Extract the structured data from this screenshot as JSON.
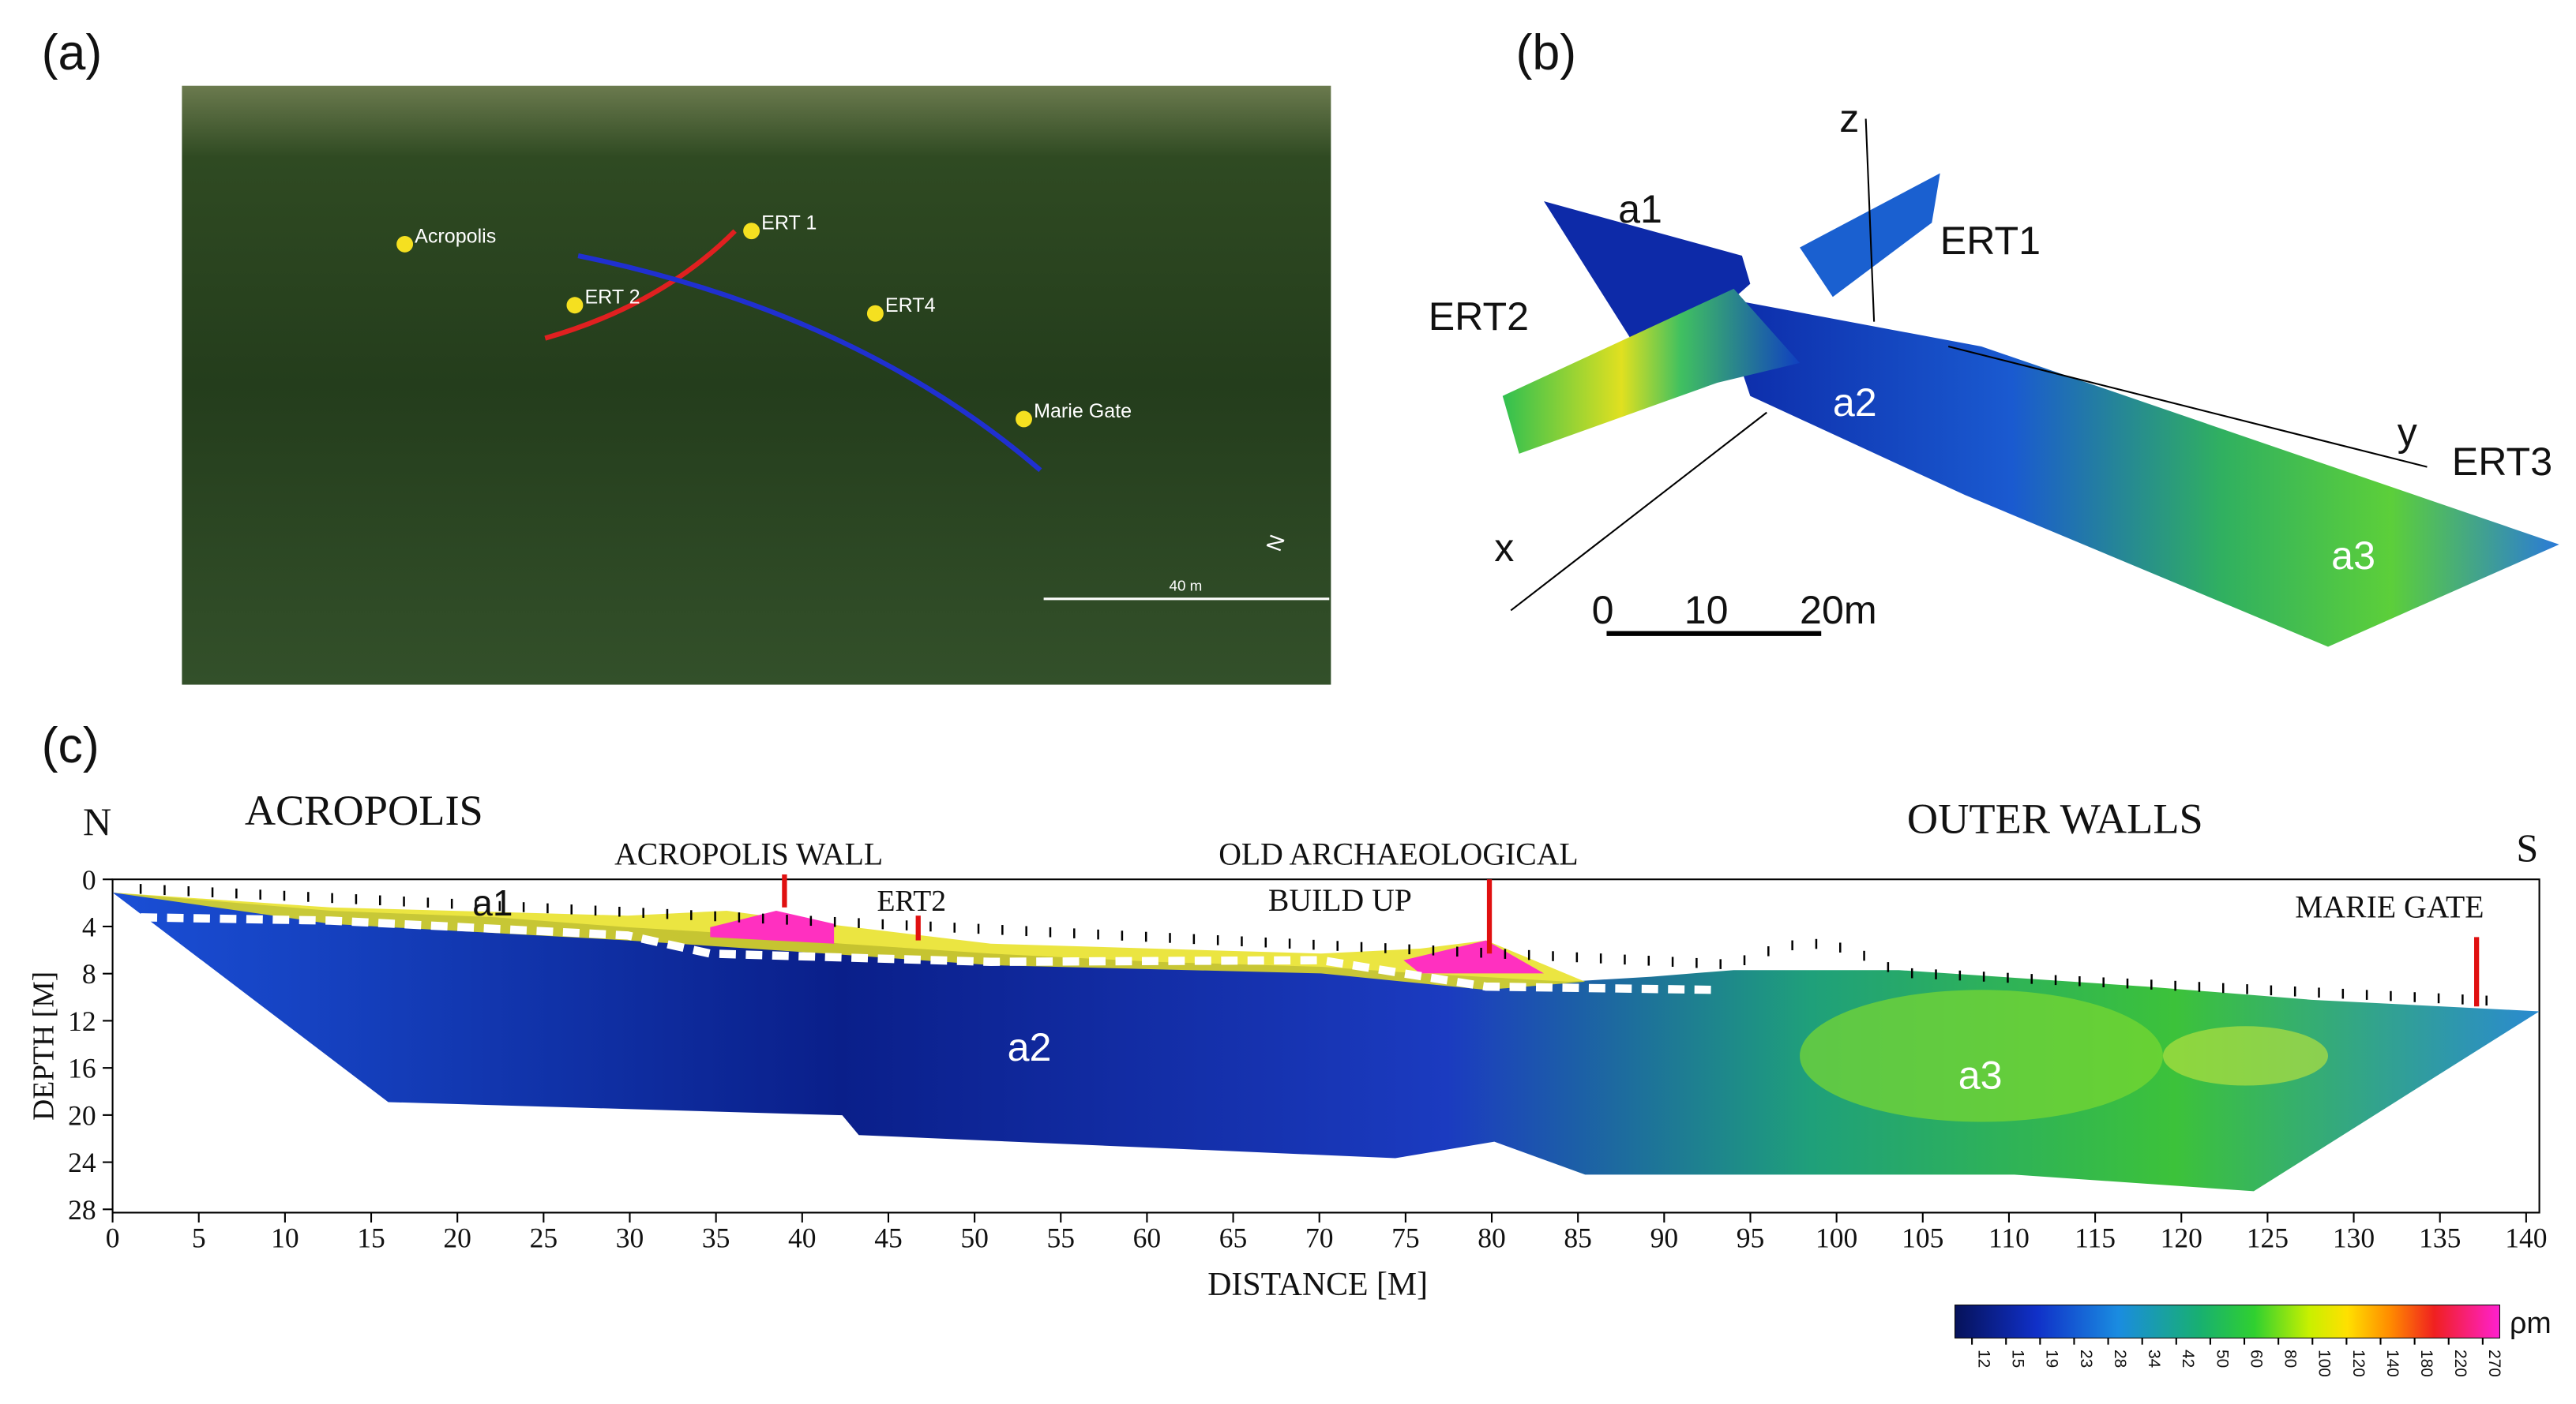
{
  "panel_a": {
    "label": "(a)",
    "places": [
      "Acropolis",
      "ERT 1",
      "ERT 2",
      "ERT4",
      "Marie Gate"
    ],
    "scale": "40 m",
    "north": "N"
  },
  "panel_b": {
    "label": "(b)",
    "a1": "a1",
    "ert1": "ERT1",
    "ert2": "ERT2",
    "a2": "a2",
    "ert3": "ERT3",
    "a3": "a3",
    "axes": [
      "z",
      "y",
      "x"
    ],
    "scale": [
      "0",
      "10",
      "20m"
    ]
  },
  "panel_c": {
    "label": "(c)",
    "north": "N",
    "south": "S",
    "acropolis": "ACROPOLIS",
    "acropolis_wall": "ACROPOLIS WALL",
    "ert2": "ERT2",
    "old_arch": "OLD ARCHAEOLOGICAL",
    "build_up": "BUILD UP",
    "outer_walls": "OUTER WALLS",
    "marie_gate": "MARIE GATE",
    "a1": "a1",
    "a2": "a2",
    "a3": "a3",
    "x_label": "DISTANCE [M]",
    "y_label": "DEPTH [M]",
    "xlim": [
      0,
      140
    ],
    "xticks": [
      0,
      5,
      10,
      15,
      20,
      25,
      30,
      35,
      40,
      45,
      50,
      55,
      60,
      65,
      70,
      75,
      80,
      85,
      90,
      95,
      100,
      105,
      110,
      115,
      120,
      125,
      130,
      135,
      140
    ],
    "ylim": [
      0,
      28
    ],
    "yticks": [
      0,
      4,
      8,
      12,
      16,
      20,
      24,
      28
    ],
    "colorbar": {
      "ticks": [
        12,
        15,
        19,
        23,
        28,
        34,
        42,
        50,
        60,
        80,
        100,
        120,
        140,
        180,
        220,
        270
      ],
      "unit": "ρm"
    }
  }
}
